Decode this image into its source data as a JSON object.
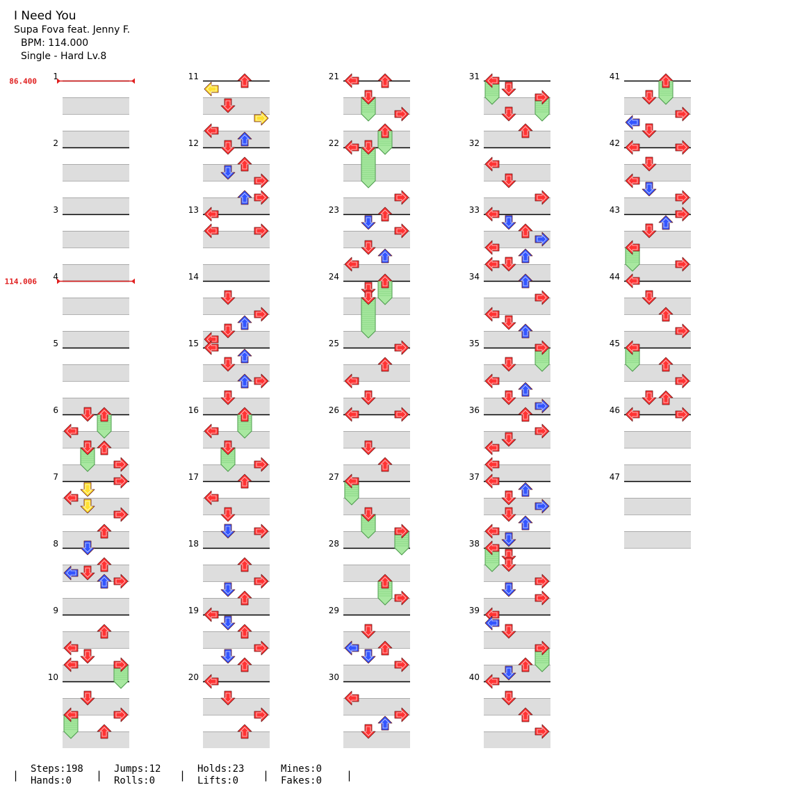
{
  "song": {
    "title": "I Need You",
    "artist": "Supa Fova feat. Jenny F.",
    "bpm_text": "BPM: 114.000",
    "difficulty_text": "Single - Hard  Lv.8"
  },
  "bpm_changes": [
    {
      "measure": 1,
      "beat": 0,
      "label": "86.400"
    },
    {
      "measure": 4,
      "beat": 0,
      "label": "114.006"
    }
  ],
  "measures": [
    {
      "n": 1,
      "notes": []
    },
    {
      "n": 2,
      "notes": []
    },
    {
      "n": 3,
      "notes": []
    },
    {
      "n": 4,
      "notes": []
    },
    {
      "n": 5,
      "notes": []
    },
    {
      "n": 6,
      "notes": [
        {
          "b": 0,
          "d": "D"
        },
        {
          "b": 0,
          "d": "U",
          "hold": 1
        },
        {
          "b": 1,
          "d": "L"
        },
        {
          "b": 2,
          "d": "D",
          "hold": 1
        },
        {
          "b": 2,
          "d": "U"
        },
        {
          "b": 3,
          "d": "R"
        }
      ]
    },
    {
      "n": 7,
      "notes": [
        {
          "b": 0,
          "d": "R"
        },
        {
          "b": 0.5,
          "d": "D",
          "c": "yellow"
        },
        {
          "b": 1,
          "d": "L"
        },
        {
          "b": 1.5,
          "d": "D",
          "c": "yellow"
        },
        {
          "b": 2,
          "d": "R"
        },
        {
          "b": 3,
          "d": "U"
        }
      ]
    },
    {
      "n": 8,
      "notes": [
        {
          "b": 0,
          "d": "D",
          "c": "blue"
        },
        {
          "b": 1,
          "d": "U"
        },
        {
          "b": 1.5,
          "d": "L",
          "c": "blue"
        },
        {
          "b": 1.5,
          "d": "D"
        },
        {
          "b": 2,
          "d": "U",
          "c": "blue"
        },
        {
          "b": 2,
          "d": "R"
        }
      ]
    },
    {
      "n": 9,
      "notes": [
        {
          "b": 1,
          "d": "U"
        },
        {
          "b": 2,
          "d": "L"
        },
        {
          "b": 2.5,
          "d": "D"
        },
        {
          "b": 3,
          "d": "L"
        },
        {
          "b": 3,
          "d": "R",
          "hold": 1
        }
      ]
    },
    {
      "n": 10,
      "notes": [
        {
          "b": 1,
          "d": "D"
        },
        {
          "b": 2,
          "d": "L",
          "hold": 1
        },
        {
          "b": 2,
          "d": "R"
        },
        {
          "b": 3,
          "d": "U"
        }
      ]
    },
    {
      "n": 11,
      "notes": [
        {
          "b": 0,
          "d": "U"
        },
        {
          "b": 0.5,
          "d": "L",
          "c": "yellow"
        },
        {
          "b": 1.5,
          "d": "D"
        },
        {
          "b": 2.25,
          "d": "R",
          "c": "yellow"
        },
        {
          "b": 3,
          "d": "L"
        },
        {
          "b": 3.5,
          "d": "U",
          "c": "blue"
        }
      ]
    },
    {
      "n": 12,
      "notes": [
        {
          "b": 0,
          "d": "D"
        },
        {
          "b": 1,
          "d": "U"
        },
        {
          "b": 1.5,
          "d": "D",
          "c": "blue"
        },
        {
          "b": 2,
          "d": "R"
        },
        {
          "b": 3,
          "d": "U",
          "c": "blue"
        },
        {
          "b": 3,
          "d": "R"
        }
      ]
    },
    {
      "n": 13,
      "notes": [
        {
          "b": 0,
          "d": "L"
        },
        {
          "b": 1,
          "d": "L"
        },
        {
          "b": 1,
          "d": "R"
        }
      ]
    },
    {
      "n": 14,
      "notes": [
        {
          "b": 1,
          "d": "D"
        },
        {
          "b": 2,
          "d": "R"
        },
        {
          "b": 2.5,
          "d": "U",
          "c": "blue"
        },
        {
          "b": 3,
          "d": "D"
        },
        {
          "b": 3.5,
          "d": "L"
        }
      ]
    },
    {
      "n": 15,
      "notes": [
        {
          "b": 0,
          "d": "L"
        },
        {
          "b": 0.5,
          "d": "U",
          "c": "blue"
        },
        {
          "b": 1,
          "d": "D"
        },
        {
          "b": 2,
          "d": "U",
          "c": "blue"
        },
        {
          "b": 2,
          "d": "R"
        },
        {
          "b": 3,
          "d": "D"
        }
      ]
    },
    {
      "n": 16,
      "notes": [
        {
          "b": 0,
          "d": "U",
          "hold": 1
        },
        {
          "b": 1,
          "d": "L"
        },
        {
          "b": 2,
          "d": "D",
          "hold": 1
        },
        {
          "b": 3,
          "d": "R"
        }
      ]
    },
    {
      "n": 17,
      "notes": [
        {
          "b": 0,
          "d": "U"
        },
        {
          "b": 1,
          "d": "L"
        },
        {
          "b": 2,
          "d": "D"
        },
        {
          "b": 3,
          "d": "D",
          "c": "blue"
        },
        {
          "b": 3,
          "d": "R"
        }
      ]
    },
    {
      "n": 18,
      "notes": [
        {
          "b": 1,
          "d": "U"
        },
        {
          "b": 2,
          "d": "R"
        },
        {
          "b": 2.5,
          "d": "D",
          "c": "blue"
        },
        {
          "b": 3,
          "d": "U"
        }
      ]
    },
    {
      "n": 19,
      "notes": [
        {
          "b": 0,
          "d": "L"
        },
        {
          "b": 0.5,
          "d": "D",
          "c": "blue"
        },
        {
          "b": 1,
          "d": "U"
        },
        {
          "b": 2,
          "d": "R"
        },
        {
          "b": 2.5,
          "d": "D",
          "c": "blue"
        },
        {
          "b": 3,
          "d": "U"
        }
      ]
    },
    {
      "n": 20,
      "notes": [
        {
          "b": 0,
          "d": "L"
        },
        {
          "b": 1,
          "d": "D"
        },
        {
          "b": 2,
          "d": "R"
        },
        {
          "b": 3,
          "d": "U"
        }
      ]
    },
    {
      "n": 21,
      "notes": [
        {
          "b": 0,
          "d": "L"
        },
        {
          "b": 0,
          "d": "U"
        },
        {
          "b": 1,
          "d": "D",
          "hold": 1
        },
        {
          "b": 2,
          "d": "R"
        },
        {
          "b": 3,
          "d": "U",
          "hold": 1
        }
      ]
    },
    {
      "n": 22,
      "notes": [
        {
          "b": 0,
          "d": "D",
          "hold": 2
        },
        {
          "b": 0,
          "d": "L"
        },
        {
          "b": 3,
          "d": "R"
        }
      ]
    },
    {
      "n": 23,
      "notes": [
        {
          "b": 0,
          "d": "U"
        },
        {
          "b": 0.5,
          "d": "D",
          "c": "blue"
        },
        {
          "b": 1,
          "d": "R"
        },
        {
          "b": 2,
          "d": "D"
        },
        {
          "b": 2.5,
          "d": "U",
          "c": "blue"
        },
        {
          "b": 3,
          "d": "L"
        }
      ]
    },
    {
      "n": 24,
      "notes": [
        {
          "b": 0,
          "d": "U",
          "hold": 1
        },
        {
          "b": 0.5,
          "d": "D"
        },
        {
          "b": 1,
          "d": "D",
          "hold": 2
        }
      ]
    },
    {
      "n": 25,
      "notes": [
        {
          "b": 0,
          "d": "R"
        },
        {
          "b": 1,
          "d": "U"
        },
        {
          "b": 2,
          "d": "L"
        },
        {
          "b": 3,
          "d": "D"
        }
      ]
    },
    {
      "n": 26,
      "notes": [
        {
          "b": 0,
          "d": "L"
        },
        {
          "b": 0,
          "d": "R"
        },
        {
          "b": 2,
          "d": "D"
        },
        {
          "b": 3,
          "d": "U"
        }
      ]
    },
    {
      "n": 27,
      "notes": [
        {
          "b": 0,
          "d": "L",
          "hold": 1
        },
        {
          "b": 2,
          "d": "D",
          "hold": 1
        },
        {
          "b": 3,
          "d": "R",
          "hold": 1
        }
      ]
    },
    {
      "n": 28,
      "notes": [
        {
          "b": 2,
          "d": "U",
          "hold": 1
        },
        {
          "b": 3,
          "d": "R"
        }
      ]
    },
    {
      "n": 29,
      "notes": [
        {
          "b": 1,
          "d": "D"
        },
        {
          "b": 2,
          "d": "L",
          "c": "blue"
        },
        {
          "b": 2,
          "d": "U"
        },
        {
          "b": 2.5,
          "d": "D",
          "c": "blue"
        },
        {
          "b": 3,
          "d": "R"
        }
      ]
    },
    {
      "n": 30,
      "notes": [
        {
          "b": 1,
          "d": "L"
        },
        {
          "b": 2,
          "d": "R"
        },
        {
          "b": 2.5,
          "d": "U",
          "c": "blue"
        },
        {
          "b": 3,
          "d": "D"
        }
      ]
    },
    {
      "n": 31,
      "notes": [
        {
          "b": 0,
          "d": "L",
          "hold": 1
        },
        {
          "b": 0.5,
          "d": "D"
        },
        {
          "b": 1,
          "d": "R",
          "hold": 1
        },
        {
          "b": 2,
          "d": "D"
        },
        {
          "b": 3,
          "d": "U"
        }
      ]
    },
    {
      "n": 32,
      "notes": [
        {
          "b": 1,
          "d": "L"
        },
        {
          "b": 2,
          "d": "D"
        },
        {
          "b": 3,
          "d": "R"
        }
      ]
    },
    {
      "n": 33,
      "notes": [
        {
          "b": 0,
          "d": "L"
        },
        {
          "b": 0.5,
          "d": "D",
          "c": "blue"
        },
        {
          "b": 1,
          "d": "U"
        },
        {
          "b": 1.5,
          "d": "R",
          "c": "blue"
        },
        {
          "b": 2,
          "d": "L"
        },
        {
          "b": 2.5,
          "d": "U",
          "c": "blue"
        },
        {
          "b": 3,
          "d": "D"
        },
        {
          "b": 3,
          "d": "L"
        }
      ]
    },
    {
      "n": 34,
      "notes": [
        {
          "b": 0,
          "d": "U",
          "c": "blue"
        },
        {
          "b": 1,
          "d": "R"
        },
        {
          "b": 2,
          "d": "L"
        },
        {
          "b": 2.5,
          "d": "D"
        },
        {
          "b": 3,
          "d": "U",
          "c": "blue"
        }
      ]
    },
    {
      "n": 35,
      "notes": [
        {
          "b": 0,
          "d": "R",
          "hold": 1
        },
        {
          "b": 1,
          "d": "D"
        },
        {
          "b": 2,
          "d": "L"
        },
        {
          "b": 2.5,
          "d": "U",
          "c": "blue"
        },
        {
          "b": 3,
          "d": "D"
        },
        {
          "b": 3.5,
          "d": "R",
          "c": "blue"
        }
      ]
    },
    {
      "n": 36,
      "notes": [
        {
          "b": 0,
          "d": "U"
        },
        {
          "b": 1,
          "d": "R"
        },
        {
          "b": 1.5,
          "d": "D"
        },
        {
          "b": 2,
          "d": "L"
        },
        {
          "b": 3,
          "d": "L"
        }
      ]
    },
    {
      "n": 37,
      "notes": [
        {
          "b": 0,
          "d": "L"
        },
        {
          "b": 0.5,
          "d": "U",
          "c": "blue"
        },
        {
          "b": 1,
          "d": "D"
        },
        {
          "b": 1.5,
          "d": "R",
          "c": "blue"
        },
        {
          "b": 2,
          "d": "D"
        },
        {
          "b": 2.5,
          "d": "U",
          "c": "blue"
        },
        {
          "b": 3,
          "d": "L"
        },
        {
          "b": 3.5,
          "d": "D",
          "c": "blue"
        }
      ]
    },
    {
      "n": 38,
      "notes": [
        {
          "b": 0,
          "d": "L",
          "hold": 1
        },
        {
          "b": 0.5,
          "d": "D"
        },
        {
          "b": 1,
          "d": "D"
        },
        {
          "b": 2,
          "d": "R"
        },
        {
          "b": 2.5,
          "d": "D",
          "c": "blue"
        },
        {
          "b": 3,
          "d": "R"
        }
      ]
    },
    {
      "n": 39,
      "notes": [
        {
          "b": 0,
          "d": "L"
        },
        {
          "b": 0.5,
          "d": "L",
          "c": "blue"
        },
        {
          "b": 1,
          "d": "D"
        },
        {
          "b": 2,
          "d": "R",
          "hold": 1
        },
        {
          "b": 3,
          "d": "U"
        },
        {
          "b": 3.5,
          "d": "D",
          "c": "blue"
        }
      ]
    },
    {
      "n": 40,
      "notes": [
        {
          "b": 0,
          "d": "L"
        },
        {
          "b": 1,
          "d": "D"
        },
        {
          "b": 2,
          "d": "U"
        },
        {
          "b": 3,
          "d": "R"
        }
      ]
    },
    {
      "n": 41,
      "notes": [
        {
          "b": 0,
          "d": "U",
          "hold": 1
        },
        {
          "b": 1,
          "d": "D"
        },
        {
          "b": 2,
          "d": "R"
        },
        {
          "b": 2.5,
          "d": "L",
          "c": "blue"
        },
        {
          "b": 3,
          "d": "D"
        }
      ]
    },
    {
      "n": 42,
      "notes": [
        {
          "b": 0,
          "d": "L"
        },
        {
          "b": 0,
          "d": "R"
        },
        {
          "b": 1,
          "d": "D"
        },
        {
          "b": 2,
          "d": "L"
        },
        {
          "b": 2.5,
          "d": "D",
          "c": "blue"
        },
        {
          "b": 3,
          "d": "R"
        }
      ]
    },
    {
      "n": 43,
      "notes": [
        {
          "b": 0,
          "d": "R"
        },
        {
          "b": 0.5,
          "d": "U",
          "c": "blue"
        },
        {
          "b": 1,
          "d": "D"
        },
        {
          "b": 2,
          "d": "L",
          "hold": 1
        },
        {
          "b": 3,
          "d": "R"
        }
      ]
    },
    {
      "n": 44,
      "notes": [
        {
          "b": 0,
          "d": "L"
        },
        {
          "b": 1,
          "d": "D"
        },
        {
          "b": 2,
          "d": "U"
        },
        {
          "b": 3,
          "d": "R"
        }
      ]
    },
    {
      "n": 45,
      "notes": [
        {
          "b": 0,
          "d": "L",
          "hold": 1
        },
        {
          "b": 1,
          "d": "U"
        },
        {
          "b": 2,
          "d": "R"
        },
        {
          "b": 3,
          "d": "D"
        },
        {
          "b": 3,
          "d": "U"
        }
      ]
    },
    {
      "n": 46,
      "notes": [
        {
          "b": 0,
          "d": "L"
        },
        {
          "b": 0,
          "d": "R"
        }
      ]
    },
    {
      "n": 47,
      "notes": [],
      "beats": 4
    }
  ],
  "stats": [
    {
      "line1": "Steps:198",
      "line2": "Hands:0"
    },
    {
      "line1": "Jumps:12",
      "line2": "Rolls:0"
    },
    {
      "line1": "Holds:23",
      "line2": "Lifts:0"
    },
    {
      "line1": "Mines:0",
      "line2": "Fakes:0"
    }
  ],
  "colors": {
    "red": "#ff3333",
    "blue": "#3355ff",
    "yellow": "#ffe030",
    "hold": "#a8e8a0",
    "shade": "#dddddd",
    "bpm": "#e02020"
  }
}
